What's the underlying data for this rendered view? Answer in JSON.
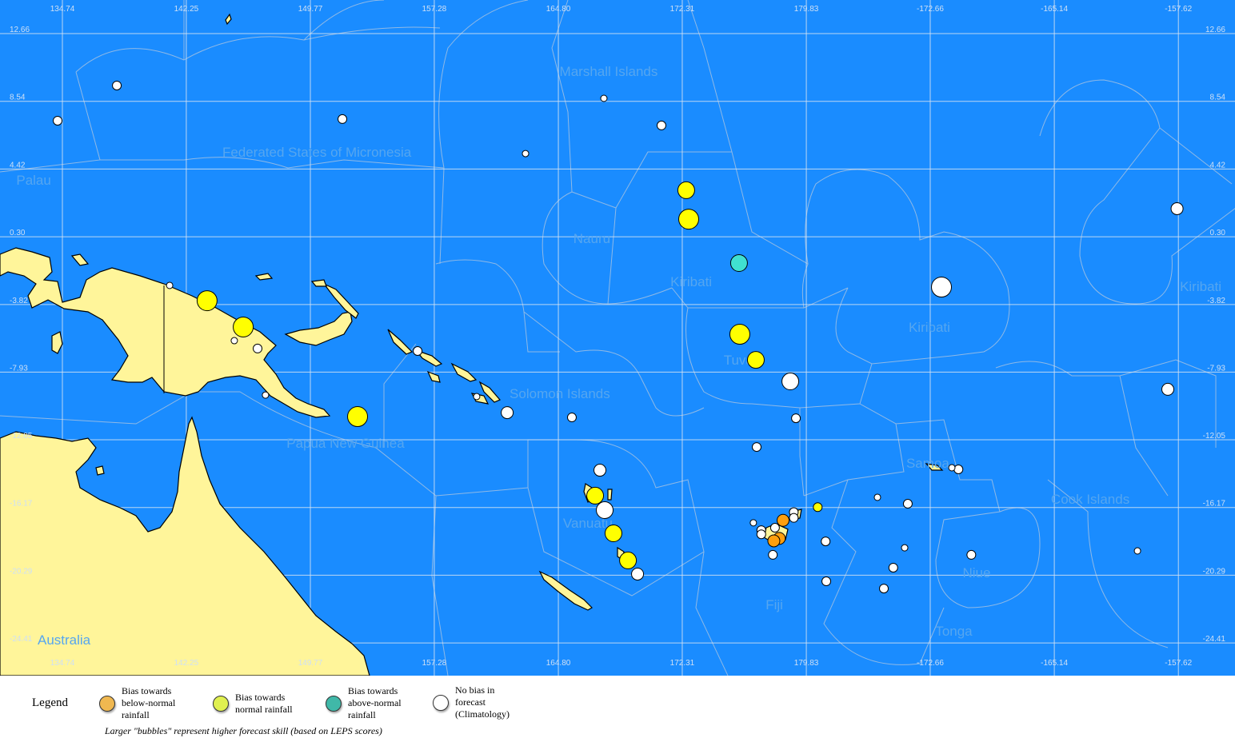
{
  "map": {
    "colors": {
      "ocean": "#1a8cff",
      "land": "#fff59a",
      "eez_boundary": "#8fb9e6",
      "graticule": "#d8e4f2",
      "country_label": "#55a6f0"
    },
    "lon_ticks": [
      "134.74",
      "142.25",
      "149.77",
      "157.28",
      "164.80",
      "172.31",
      "179.83",
      "-172.66",
      "-165.14",
      "-157.62"
    ],
    "lat_ticks": [
      "12.66",
      "8.54",
      "4.42",
      "0.30",
      "-3.82",
      "-7.93",
      "-12.05",
      "-16.17",
      "-20.29",
      "-24.41"
    ],
    "country_labels": [
      {
        "name": "Marshall Islands",
        "lon": 167.85,
        "lat": 10.37
      },
      {
        "name": "Federated States of Micronesia",
        "lon": 150.16,
        "lat": 5.46
      },
      {
        "name": "Palau",
        "lon": 133.0,
        "lat": 3.76
      },
      {
        "name": "Nauru",
        "lon": 166.83,
        "lat": 0.21
      },
      {
        "name": "Kiribati",
        "lon": 172.85,
        "lat": -2.42
      },
      {
        "name": "Kiribati",
        "lon": -172.71,
        "lat": -5.19
      },
      {
        "name": "Kiribati",
        "lon": -156.27,
        "lat": -2.71
      },
      {
        "name": "Tuvalu",
        "lon": 176.04,
        "lat": -7.18
      },
      {
        "name": "Solomon Islands",
        "lon": 164.89,
        "lat": -9.23
      },
      {
        "name": "Papua New Guinea",
        "lon": 151.9,
        "lat": -12.24
      },
      {
        "name": "Samoa",
        "lon": -172.81,
        "lat": -13.46
      },
      {
        "name": "Cook Islands",
        "lon": -162.96,
        "lat": -15.65
      },
      {
        "name": "Vanuatu",
        "lon": 166.59,
        "lat": -17.11
      },
      {
        "name": "Niue",
        "lon": -169.85,
        "lat": -20.12
      },
      {
        "name": "Fiji",
        "lon": 177.89,
        "lat": -22.07
      },
      {
        "name": "Tonga",
        "lon": -171.23,
        "lat": -23.67
      },
      {
        "name": "Australia",
        "lon": 134.84,
        "lat": -24.21
      }
    ],
    "bubble_colors": {
      "below": "#ff9f0f",
      "normal": "#ffff00",
      "above": "#40e0d0",
      "none": "#ffffff"
    },
    "stations": [
      {
        "lon": 138.04,
        "lat": 9.5,
        "bias": "none",
        "skill": 2
      },
      {
        "lon": 134.45,
        "lat": 7.36,
        "bias": "none",
        "skill": 2
      },
      {
        "lon": 151.71,
        "lat": 7.46,
        "bias": "none",
        "skill": 2
      },
      {
        "lon": 162.81,
        "lat": 5.36,
        "bias": "none",
        "skill": 1
      },
      {
        "lon": 167.56,
        "lat": 8.72,
        "bias": "none",
        "skill": 1
      },
      {
        "lon": 171.05,
        "lat": 7.07,
        "bias": "none",
        "skill": 2
      },
      {
        "lon": 172.55,
        "lat": 3.13,
        "bias": "normal",
        "skill": 4
      },
      {
        "lon": 172.7,
        "lat": 1.37,
        "bias": "normal",
        "skill": 5
      },
      {
        "lon": 175.75,
        "lat": -1.3,
        "bias": "above",
        "skill": 4
      },
      {
        "lon": -171.98,
        "lat": -2.76,
        "bias": "none",
        "skill": 5
      },
      {
        "lon": 175.8,
        "lat": -5.63,
        "bias": "normal",
        "skill": 5
      },
      {
        "lon": 176.77,
        "lat": -7.19,
        "bias": "normal",
        "skill": 4
      },
      {
        "lon": 178.86,
        "lat": -8.5,
        "bias": "none",
        "skill": 4
      },
      {
        "lon": 179.2,
        "lat": -10.74,
        "bias": "none",
        "skill": 2
      },
      {
        "lon": 176.82,
        "lat": -12.49,
        "bias": "none",
        "skill": 2
      },
      {
        "lon": -157.7,
        "lat": 2.01,
        "bias": "none",
        "skill": 3
      },
      {
        "lon": -158.26,
        "lat": -8.98,
        "bias": "none",
        "skill": 3
      },
      {
        "lon": 143.51,
        "lat": -3.59,
        "bias": "normal",
        "skill": 5
      },
      {
        "lon": 145.7,
        "lat": -5.19,
        "bias": "normal",
        "skill": 5
      },
      {
        "lon": 145.16,
        "lat": -6.02,
        "bias": "none",
        "skill": 1
      },
      {
        "lon": 146.57,
        "lat": -6.5,
        "bias": "none",
        "skill": 2
      },
      {
        "lon": 141.24,
        "lat": -2.66,
        "bias": "none",
        "skill": 1
      },
      {
        "lon": 147.05,
        "lat": -9.33,
        "bias": "none",
        "skill": 1
      },
      {
        "lon": 152.63,
        "lat": -10.64,
        "bias": "normal",
        "skill": 5
      },
      {
        "lon": 156.27,
        "lat": -6.65,
        "bias": "none",
        "skill": 2
      },
      {
        "lon": 159.85,
        "lat": -9.42,
        "bias": "none",
        "skill": 1
      },
      {
        "lon": 161.7,
        "lat": -10.4,
        "bias": "none",
        "skill": 3
      },
      {
        "lon": 165.62,
        "lat": -10.69,
        "bias": "none",
        "skill": 2
      },
      {
        "lon": 167.32,
        "lat": -13.9,
        "bias": "none",
        "skill": 3
      },
      {
        "lon": 167.03,
        "lat": -15.45,
        "bias": "normal",
        "skill": 4
      },
      {
        "lon": 167.61,
        "lat": -16.33,
        "bias": "none",
        "skill": 4
      },
      {
        "lon": 168.14,
        "lat": -17.74,
        "bias": "normal",
        "skill": 4
      },
      {
        "lon": 169.02,
        "lat": -19.39,
        "bias": "normal",
        "skill": 4
      },
      {
        "lon": 169.6,
        "lat": -20.22,
        "bias": "none",
        "skill": 3
      },
      {
        "lon": -170.95,
        "lat": -13.85,
        "bias": "none",
        "skill": 2
      },
      {
        "lon": -171.35,
        "lat": -13.75,
        "bias": "none",
        "skill": 1
      },
      {
        "lon": -179.48,
        "lat": -16.15,
        "bias": "normal",
        "skill": 2
      },
      {
        "lon": 179.07,
        "lat": -16.45,
        "bias": "none",
        "skill": 2
      },
      {
        "lon": 179.07,
        "lat": -16.8,
        "bias": "none",
        "skill": 2
      },
      {
        "lon": 178.42,
        "lat": -16.95,
        "bias": "below",
        "skill": 3
      },
      {
        "lon": 176.62,
        "lat": -17.1,
        "bias": "none",
        "skill": 1
      },
      {
        "lon": 177.93,
        "lat": -17.4,
        "bias": "none",
        "skill": 2
      },
      {
        "lon": 177.1,
        "lat": -17.55,
        "bias": "none",
        "skill": 2
      },
      {
        "lon": 177.1,
        "lat": -17.8,
        "bias": "none",
        "skill": 2
      },
      {
        "lon": 178.19,
        "lat": -18.05,
        "bias": "below",
        "skill": 3
      },
      {
        "lon": 177.86,
        "lat": -18.2,
        "bias": "below",
        "skill": 3
      },
      {
        "lon": 177.8,
        "lat": -19.05,
        "bias": "none",
        "skill": 2
      },
      {
        "lon": -179.0,
        "lat": -18.23,
        "bias": "none",
        "skill": 2
      },
      {
        "lon": -178.96,
        "lat": -20.66,
        "bias": "none",
        "skill": 2
      },
      {
        "lon": -175.86,
        "lat": -15.55,
        "bias": "none",
        "skill": 1
      },
      {
        "lon": -174.02,
        "lat": -15.94,
        "bias": "none",
        "skill": 2
      },
      {
        "lon": -174.21,
        "lat": -18.62,
        "bias": "none",
        "skill": 1
      },
      {
        "lon": -174.9,
        "lat": -19.83,
        "bias": "none",
        "skill": 2
      },
      {
        "lon": -175.47,
        "lat": -21.1,
        "bias": "none",
        "skill": 2
      },
      {
        "lon": -170.17,
        "lat": -19.05,
        "bias": "none",
        "skill": 2
      },
      {
        "lon": -160.1,
        "lat": -18.81,
        "bias": "none",
        "skill": 1
      }
    ]
  },
  "legend": {
    "title": "Legend",
    "items": [
      {
        "label": "Bias towards\nbelow-normal\nrainfall",
        "color": "#f0b850"
      },
      {
        "label": "Bias towards\nnormal rainfall",
        "color": "#e0f050"
      },
      {
        "label": "Bias towards\nabove-normal\nrainfall",
        "color": "#40b8a8"
      },
      {
        "label": "No bias in\nforecast\n(Climatology)",
        "color": "#ffffff"
      }
    ],
    "note": "Larger \"bubbles\" represent higher forecast skill (based on LEPS scores)"
  }
}
